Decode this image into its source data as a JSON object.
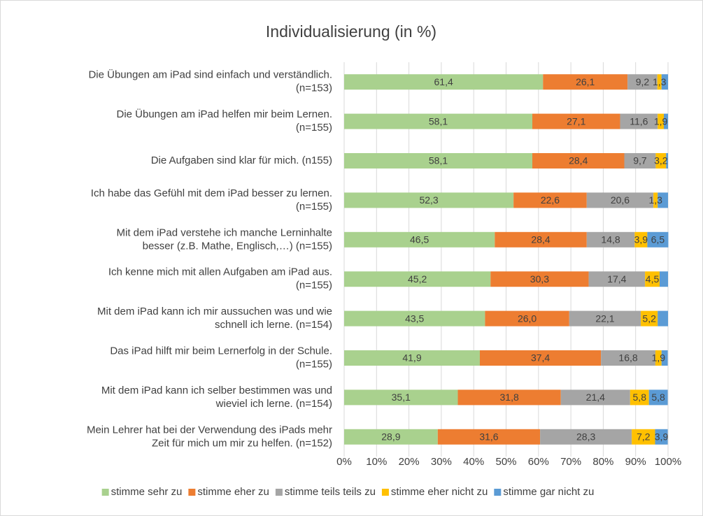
{
  "chart_data": {
    "type": "stacked_bar_horizontal",
    "title": "Individualisierung (in %)",
    "categories": [
      [
        "Die Übungen am iPad sind einfach und verständlich.",
        "(n=153)"
      ],
      [
        "Die Übungen am iPad helfen mir beim Lernen.",
        "(n=155)"
      ],
      [
        "Die Aufgaben sind klar für mich. (n155)"
      ],
      [
        "Ich habe das Gefühl mit dem iPad besser zu lernen.",
        "(n=155)"
      ],
      [
        "Mit dem iPad verstehe ich manche Lerninhalte",
        "besser (z.B. Mathe, Englisch,…) (n=155)"
      ],
      [
        "Ich kenne mich mit allen Aufgaben am iPad aus.",
        "(n=155)"
      ],
      [
        "Mit dem iPad kann ich mir aussuchen was und wie",
        "schnell ich lerne. (n=154)"
      ],
      [
        "Das iPad hilft mir beim Lernerfolg in der Schule.",
        "(n=155)"
      ],
      [
        "Mit dem iPad kann ich selber bestimmen was und",
        "wieviel ich lerne. (n=154)"
      ],
      [
        "Mein Lehrer hat bei der Verwendung des iPads mehr",
        "Zeit für mich um mir zu helfen. (n=152)"
      ]
    ],
    "series": [
      {
        "name": "stimme sehr zu",
        "color": "#a9d18e",
        "values": [
          61.4,
          58.1,
          58.1,
          52.3,
          46.5,
          45.2,
          43.5,
          41.9,
          35.1,
          28.9
        ],
        "value_labels": [
          "61,4",
          "58,1",
          "58,1",
          "52,3",
          "46,5",
          "45,2",
          "43,5",
          "41,9",
          "35,1",
          "28,9"
        ]
      },
      {
        "name": "stimme eher zu",
        "color": "#ed7d31",
        "values": [
          26.1,
          27.1,
          28.4,
          22.6,
          28.4,
          30.3,
          26.0,
          37.4,
          31.8,
          31.6
        ],
        "value_labels": [
          "26,1",
          "27,1",
          "28,4",
          "22,6",
          "28,4",
          "30,3",
          "26,0",
          "37,4",
          "31,8",
          "31,6"
        ]
      },
      {
        "name": "stimme teils teils zu",
        "color": "#a5a5a5",
        "values": [
          9.2,
          11.6,
          9.7,
          20.6,
          14.8,
          17.4,
          22.1,
          16.8,
          21.4,
          28.3
        ],
        "value_labels": [
          "9,2",
          "11,6",
          "9,7",
          "20,6",
          "14,8",
          "17,4",
          "22,1",
          "16,8",
          "21,4",
          "28,3"
        ]
      },
      {
        "name": "stimme eher nicht zu",
        "color": "#ffc000",
        "values": [
          1.3,
          1.9,
          3.2,
          1.3,
          3.9,
          4.5,
          5.2,
          1.9,
          5.8,
          7.2
        ],
        "value_labels": [
          "1,3",
          "1,9",
          "3,2",
          "1,3",
          "3,9",
          "4,5",
          "5,2",
          "1,9",
          "5,8",
          "7,2"
        ]
      },
      {
        "name": "stimme gar nicht zu",
        "color": "#5b9bd5",
        "values": [
          2.0,
          1.3,
          0.6,
          3.2,
          6.5,
          2.6,
          3.2,
          1.9,
          5.8,
          3.9
        ],
        "value_labels": [
          null,
          null,
          null,
          null,
          "6,5",
          null,
          null,
          null,
          "5,8",
          "3,9"
        ]
      }
    ],
    "xlim": [
      0,
      100
    ],
    "xticks": [
      {
        "value": 0,
        "label": "0%"
      },
      {
        "value": 10,
        "label": "10%"
      },
      {
        "value": 20,
        "label": "20%"
      },
      {
        "value": 30,
        "label": "30%"
      },
      {
        "value": 40,
        "label": "40%"
      },
      {
        "value": 50,
        "label": "50%"
      },
      {
        "value": 60,
        "label": "60%"
      },
      {
        "value": 70,
        "label": "70%"
      },
      {
        "value": 80,
        "label": "80%"
      },
      {
        "value": 90,
        "label": "90%"
      },
      {
        "value": 100,
        "label": "100%"
      }
    ],
    "grid": true,
    "legend": "bottom"
  }
}
